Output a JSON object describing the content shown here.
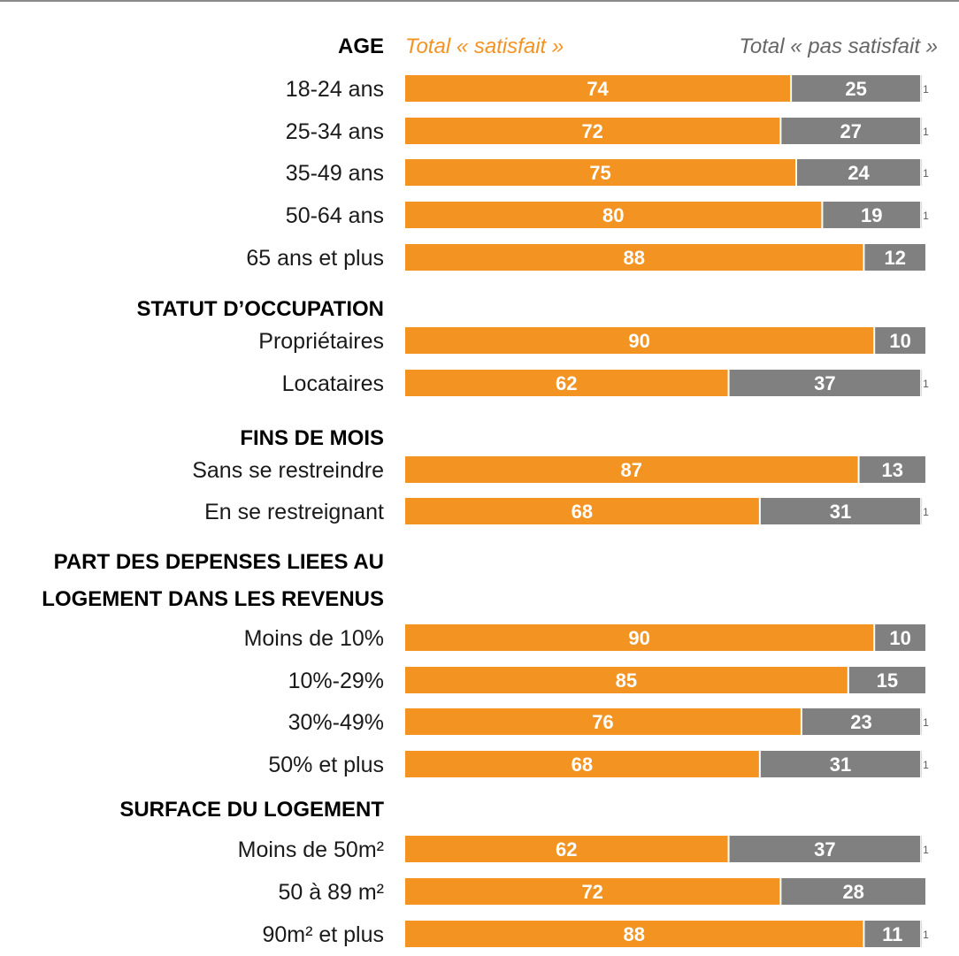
{
  "chart_data": {
    "type": "bar",
    "stacked": true,
    "orientation": "horizontal",
    "colors": {
      "satisfied": "#f39322",
      "not_satisfied": "#808080",
      "remainder_text": "#595959"
    },
    "legend": {
      "group_heading": "AGE",
      "satisfied_label": "Total « satisfait »",
      "not_satisfied_label": "Total « pas satisfait »"
    },
    "xlim": [
      0,
      100
    ],
    "rows": [
      {
        "kind": "bar",
        "label": "18-24 ans",
        "satisfied": 74,
        "not_satisfied": 25,
        "remainder": 1
      },
      {
        "kind": "bar",
        "label": "25-34 ans",
        "satisfied": 72,
        "not_satisfied": 27,
        "remainder": 1
      },
      {
        "kind": "bar",
        "label": "35-49 ans",
        "satisfied": 75,
        "not_satisfied": 24,
        "remainder": 1
      },
      {
        "kind": "bar",
        "label": "50-64 ans",
        "satisfied": 80,
        "not_satisfied": 19,
        "remainder": 1
      },
      {
        "kind": "bar",
        "label": "65 ans et plus",
        "satisfied": 88,
        "not_satisfied": 12,
        "remainder": null
      },
      {
        "kind": "heading",
        "lines": [
          "STATUT D’OCCUPATION"
        ]
      },
      {
        "kind": "bar",
        "label": "Propriétaires",
        "satisfied": 90,
        "not_satisfied": 10,
        "remainder": null
      },
      {
        "kind": "bar",
        "label": "Locataires",
        "satisfied": 62,
        "not_satisfied": 37,
        "remainder": 1
      },
      {
        "kind": "heading",
        "lines": [
          "FINS DE MOIS"
        ]
      },
      {
        "kind": "bar",
        "label": "Sans se restreindre",
        "satisfied": 87,
        "not_satisfied": 13,
        "remainder": null
      },
      {
        "kind": "bar",
        "label": "En se restreignant",
        "satisfied": 68,
        "not_satisfied": 31,
        "remainder": 1
      },
      {
        "kind": "heading",
        "lines": [
          "PART DES DEPENSES LIEES AU",
          "LOGEMENT DANS LES REVENUS"
        ]
      },
      {
        "kind": "bar",
        "label": "Moins de 10%",
        "satisfied": 90,
        "not_satisfied": 10,
        "remainder": null
      },
      {
        "kind": "bar",
        "label": "10%-29%",
        "satisfied": 85,
        "not_satisfied": 15,
        "remainder": null
      },
      {
        "kind": "bar",
        "label": "30%-49%",
        "satisfied": 76,
        "not_satisfied": 23,
        "remainder": 1
      },
      {
        "kind": "bar",
        "label": "50% et plus",
        "satisfied": 68,
        "not_satisfied": 31,
        "remainder": 1
      },
      {
        "kind": "heading",
        "lines": [
          "SURFACE DU LOGEMENT"
        ]
      },
      {
        "kind": "bar",
        "label": "Moins de 50m²",
        "satisfied": 62,
        "not_satisfied": 37,
        "remainder": 1
      },
      {
        "kind": "bar",
        "label": "50 à 89 m²",
        "satisfied": 72,
        "not_satisfied": 28,
        "remainder": null
      },
      {
        "kind": "bar",
        "label": "90m² et plus",
        "satisfied": 88,
        "not_satisfied": 11,
        "remainder": 1
      }
    ]
  }
}
